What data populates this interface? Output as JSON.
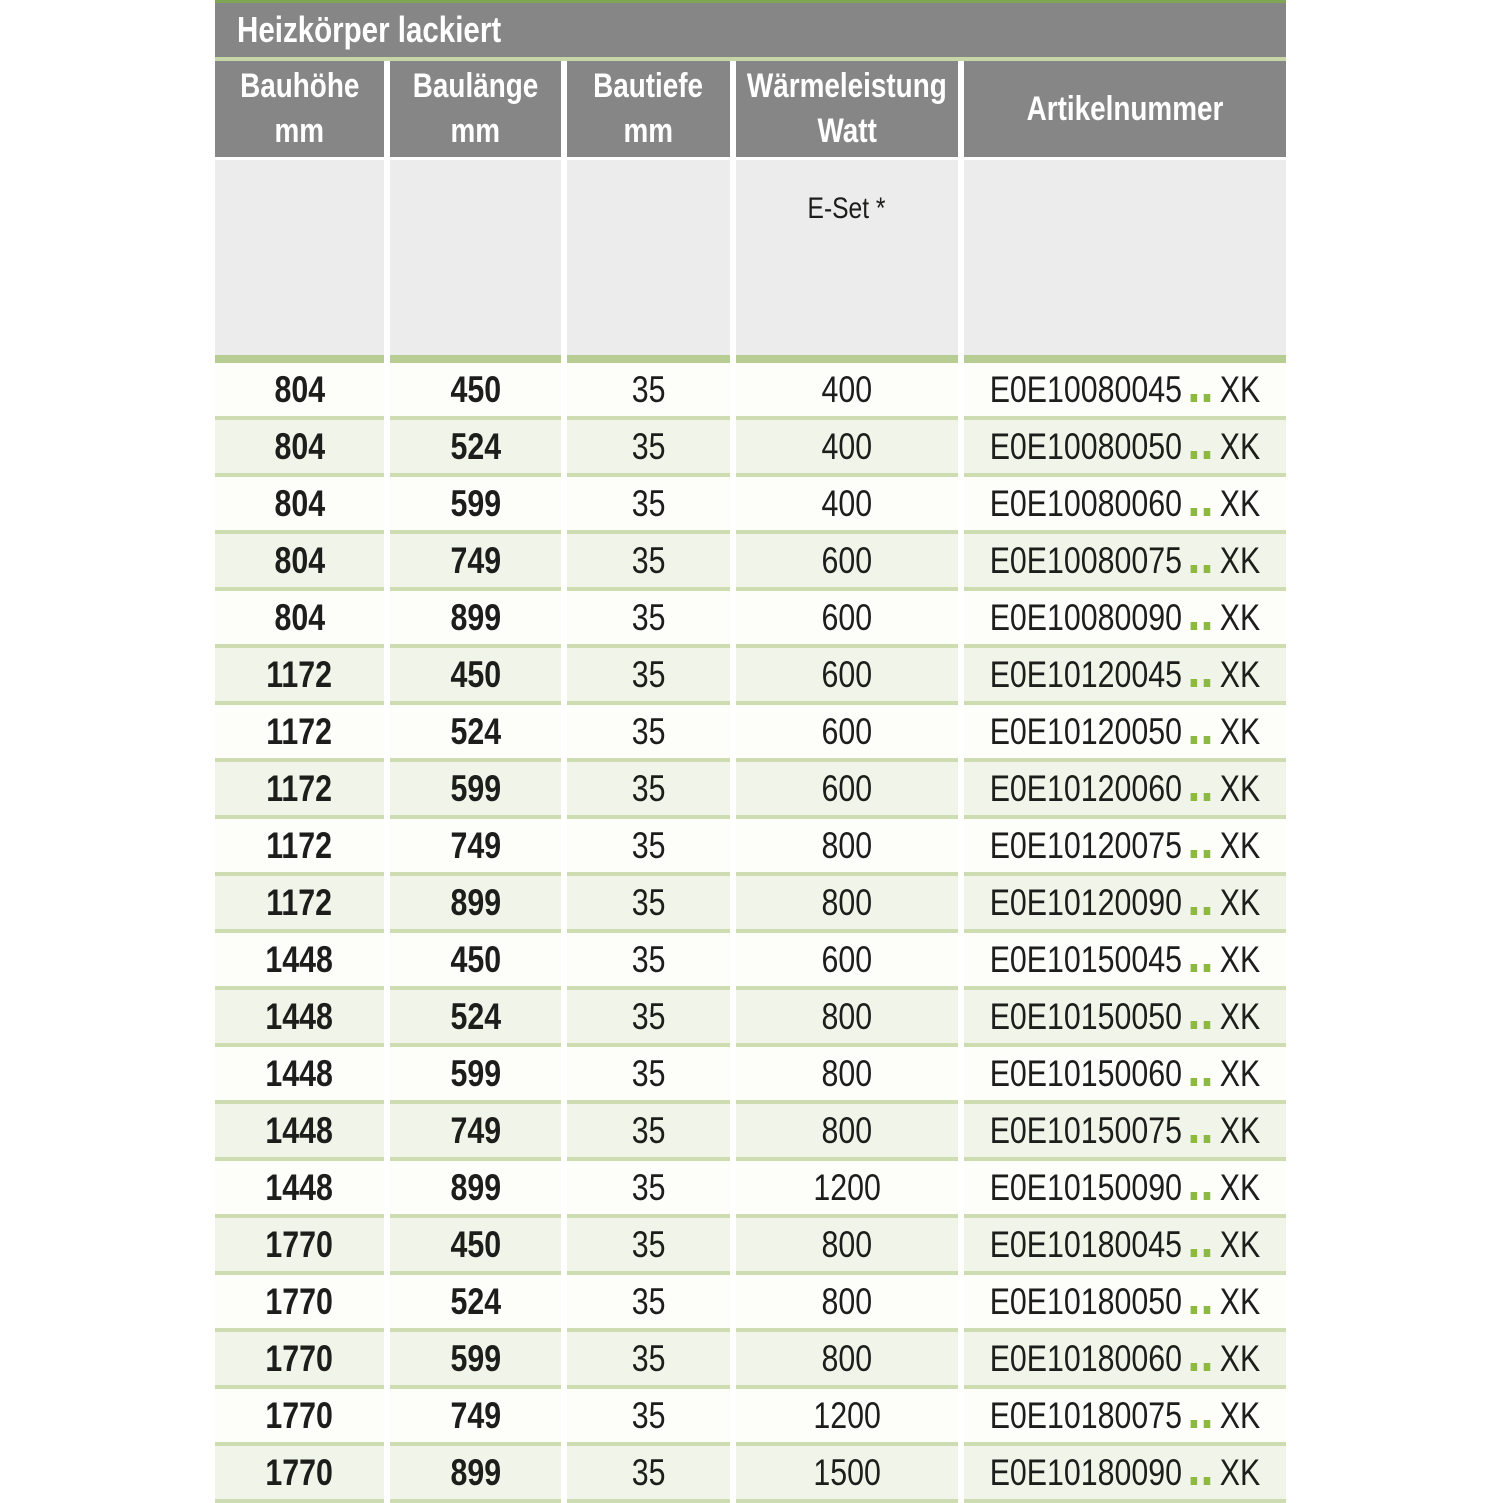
{
  "table": {
    "title": "Heizkörper lackiert",
    "columns": [
      {
        "line1": "Bauhöhe",
        "line2": "mm"
      },
      {
        "line1": "Baulänge",
        "line2": "mm"
      },
      {
        "line1": "Bautiefe",
        "line2": "mm"
      },
      {
        "line1": "Wärmeleistung",
        "line2": "Watt"
      },
      {
        "line1": "Artikelnummer",
        "line2": ""
      }
    ],
    "subheader": {
      "e_set_label": "E-Set *"
    },
    "artikel_separator": "..",
    "rows": [
      {
        "bauhoehe": "804",
        "baulaenge": "450",
        "bautiefe": "35",
        "watt": "400",
        "artikel_prefix": "E0E10080045",
        "artikel_suffix": "XK"
      },
      {
        "bauhoehe": "804",
        "baulaenge": "524",
        "bautiefe": "35",
        "watt": "400",
        "artikel_prefix": "E0E10080050",
        "artikel_suffix": "XK"
      },
      {
        "bauhoehe": "804",
        "baulaenge": "599",
        "bautiefe": "35",
        "watt": "400",
        "artikel_prefix": "E0E10080060",
        "artikel_suffix": "XK"
      },
      {
        "bauhoehe": "804",
        "baulaenge": "749",
        "bautiefe": "35",
        "watt": "600",
        "artikel_prefix": "E0E10080075",
        "artikel_suffix": "XK"
      },
      {
        "bauhoehe": "804",
        "baulaenge": "899",
        "bautiefe": "35",
        "watt": "600",
        "artikel_prefix": "E0E10080090",
        "artikel_suffix": "XK"
      },
      {
        "bauhoehe": "1172",
        "baulaenge": "450",
        "bautiefe": "35",
        "watt": "600",
        "artikel_prefix": "E0E10120045",
        "artikel_suffix": "XK"
      },
      {
        "bauhoehe": "1172",
        "baulaenge": "524",
        "bautiefe": "35",
        "watt": "600",
        "artikel_prefix": "E0E10120050",
        "artikel_suffix": "XK"
      },
      {
        "bauhoehe": "1172",
        "baulaenge": "599",
        "bautiefe": "35",
        "watt": "600",
        "artikel_prefix": "E0E10120060",
        "artikel_suffix": "XK"
      },
      {
        "bauhoehe": "1172",
        "baulaenge": "749",
        "bautiefe": "35",
        "watt": "800",
        "artikel_prefix": "E0E10120075",
        "artikel_suffix": "XK"
      },
      {
        "bauhoehe": "1172",
        "baulaenge": "899",
        "bautiefe": "35",
        "watt": "800",
        "artikel_prefix": "E0E10120090",
        "artikel_suffix": "XK"
      },
      {
        "bauhoehe": "1448",
        "baulaenge": "450",
        "bautiefe": "35",
        "watt": "600",
        "artikel_prefix": "E0E10150045",
        "artikel_suffix": "XK"
      },
      {
        "bauhoehe": "1448",
        "baulaenge": "524",
        "bautiefe": "35",
        "watt": "800",
        "artikel_prefix": "E0E10150050",
        "artikel_suffix": "XK"
      },
      {
        "bauhoehe": "1448",
        "baulaenge": "599",
        "bautiefe": "35",
        "watt": "800",
        "artikel_prefix": "E0E10150060",
        "artikel_suffix": "XK"
      },
      {
        "bauhoehe": "1448",
        "baulaenge": "749",
        "bautiefe": "35",
        "watt": "800",
        "artikel_prefix": "E0E10150075",
        "artikel_suffix": "XK"
      },
      {
        "bauhoehe": "1448",
        "baulaenge": "899",
        "bautiefe": "35",
        "watt": "1200",
        "artikel_prefix": "E0E10150090",
        "artikel_suffix": "XK"
      },
      {
        "bauhoehe": "1770",
        "baulaenge": "450",
        "bautiefe": "35",
        "watt": "800",
        "artikel_prefix": "E0E10180045",
        "artikel_suffix": "XK"
      },
      {
        "bauhoehe": "1770",
        "baulaenge": "524",
        "bautiefe": "35",
        "watt": "800",
        "artikel_prefix": "E0E10180050",
        "artikel_suffix": "XK"
      },
      {
        "bauhoehe": "1770",
        "baulaenge": "599",
        "bautiefe": "35",
        "watt": "800",
        "artikel_prefix": "E0E10180060",
        "artikel_suffix": "XK"
      },
      {
        "bauhoehe": "1770",
        "baulaenge": "749",
        "bautiefe": "35",
        "watt": "1200",
        "artikel_prefix": "E0E10180075",
        "artikel_suffix": "XK"
      },
      {
        "bauhoehe": "1770",
        "baulaenge": "899",
        "bautiefe": "35",
        "watt": "1500",
        "artikel_prefix": "E0E10180090",
        "artikel_suffix": "XK"
      }
    ]
  },
  "colors": {
    "header_gray": "#868686",
    "subheader_gray": "#ececec",
    "accent_green_top_line": "#7fa654",
    "pale_green_line": "#c7d6a8",
    "thick_green_line": "#b7cd94",
    "row_separator_green": "#cdddb1",
    "row_tint_green": "#f1f5e9",
    "artikel_dot_green": "#8db942"
  }
}
